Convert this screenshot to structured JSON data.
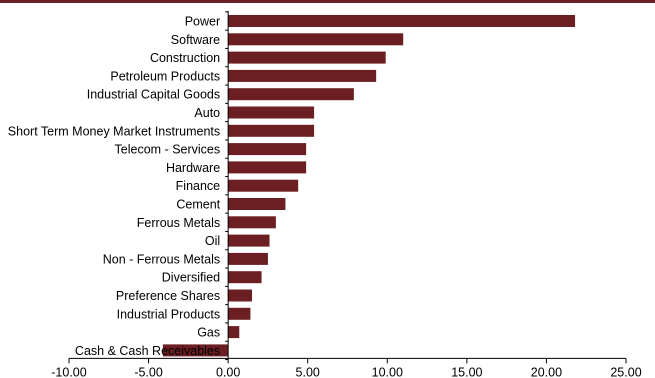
{
  "colors": {
    "bar": "#6b1f22",
    "axis": "#000000",
    "rule": "#6b1f22"
  },
  "chart_data": {
    "type": "bar",
    "orientation": "horizontal",
    "categories": [
      "Power",
      "Software",
      "Construction",
      "Petroleum Products",
      "Industrial Capital Goods",
      "Auto",
      "Short Term Money Market Instruments",
      "Telecom - Services",
      "Hardware",
      "Finance",
      "Cement",
      "Ferrous Metals",
      "Oil",
      "Non - Ferrous Metals",
      "Diversified",
      "Preference Shares",
      "Industrial Products",
      "Gas",
      "Cash & Cash Receivables"
    ],
    "values": [
      21.8,
      11.0,
      9.9,
      9.3,
      7.9,
      5.4,
      5.4,
      4.9,
      4.9,
      4.4,
      3.6,
      3.0,
      2.6,
      2.5,
      2.1,
      1.5,
      1.4,
      0.7,
      -4.1
    ],
    "xlim": [
      -10,
      25
    ],
    "xticks": [
      -10,
      -5,
      0,
      5,
      10,
      15,
      20,
      25
    ],
    "xtick_labels": [
      "-10.00",
      "-5.00",
      "0.00",
      "5.00",
      "10.00",
      "15.00",
      "20.00",
      "25.00"
    ],
    "title": "",
    "xlabel": "",
    "ylabel": "",
    "grid": false,
    "legend": "none"
  }
}
